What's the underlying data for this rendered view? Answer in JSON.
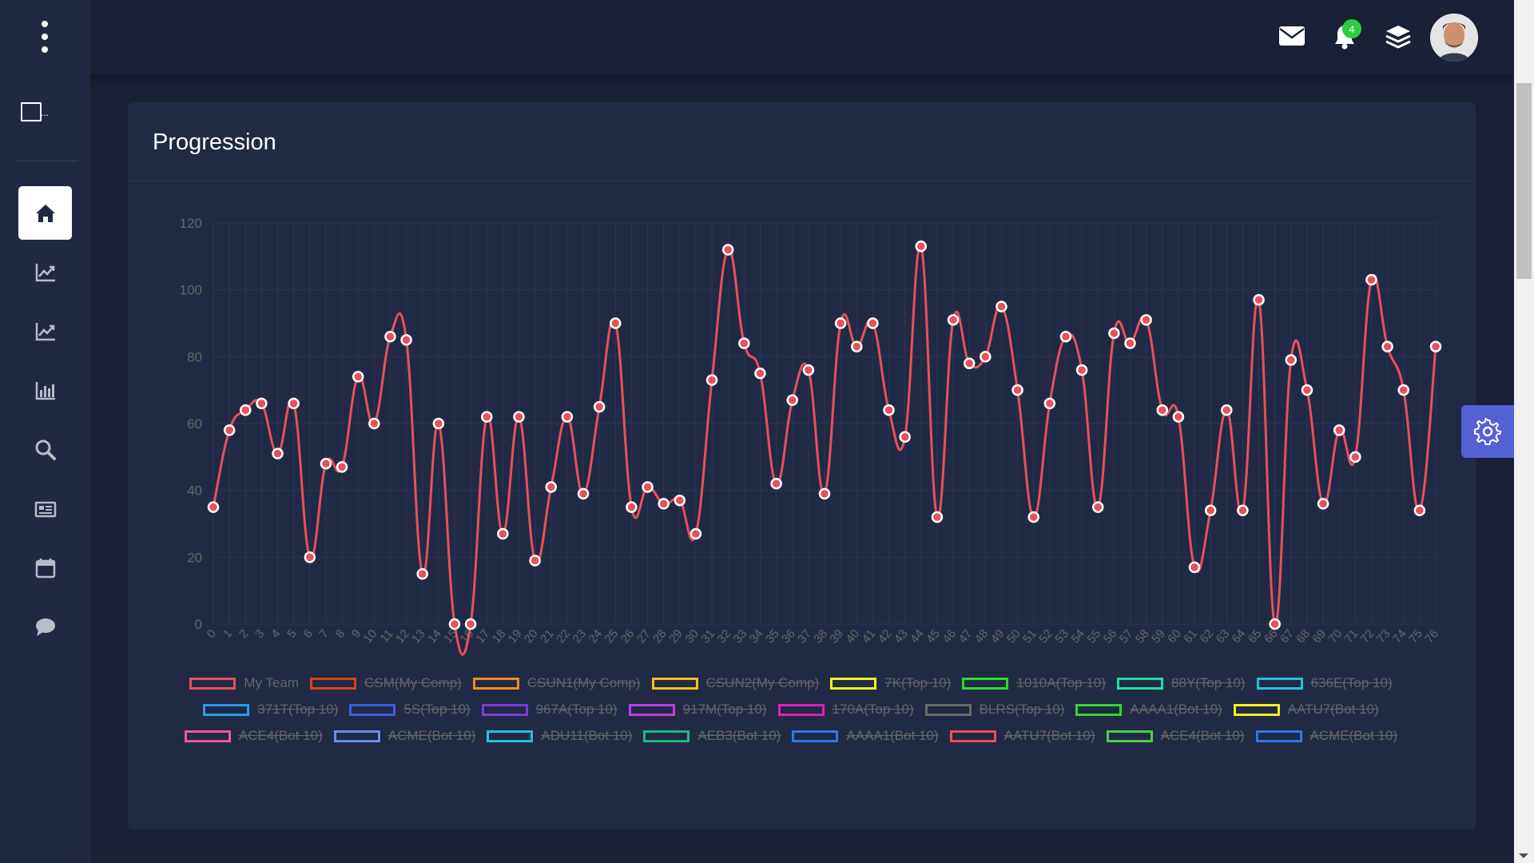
{
  "header": {
    "notification_count": "4"
  },
  "sidebar": {
    "logo_text": "...",
    "items": [
      {
        "icon": "home-icon",
        "active": true
      },
      {
        "icon": "line-chart-icon",
        "active": false
      },
      {
        "icon": "line-chart-icon",
        "active": false
      },
      {
        "icon": "bar-chart-icon",
        "active": false
      },
      {
        "icon": "search-icon",
        "active": false
      },
      {
        "icon": "newspaper-icon",
        "active": false
      },
      {
        "icon": "calendar-icon",
        "active": false
      },
      {
        "icon": "chat-icon",
        "active": false
      }
    ]
  },
  "card": {
    "title": "Progression"
  },
  "chart_data": {
    "type": "line",
    "title": "",
    "xlabel": "",
    "ylabel": "",
    "ylim": [
      0,
      120
    ],
    "yticks": [
      0,
      20,
      40,
      60,
      80,
      100,
      120
    ],
    "grid": true,
    "legend_position": "bottom",
    "x": [
      0,
      1,
      2,
      3,
      4,
      5,
      6,
      7,
      8,
      9,
      10,
      11,
      12,
      13,
      14,
      15,
      16,
      17,
      18,
      19,
      20,
      21,
      22,
      23,
      24,
      25,
      26,
      27,
      28,
      29,
      30,
      31,
      32,
      33,
      34,
      35,
      36,
      37,
      38,
      39,
      40,
      41,
      42,
      43,
      44,
      45,
      46,
      47,
      48,
      49,
      50,
      51,
      52,
      53,
      54,
      55,
      56,
      57,
      58,
      59,
      60,
      61,
      62,
      63,
      64,
      65,
      66,
      67,
      68,
      69,
      70,
      71,
      72,
      73,
      74,
      75,
      76
    ],
    "series": [
      {
        "name": "My Team",
        "color": "#e8505b",
        "hidden": false,
        "values": [
          35,
          58,
          64,
          66,
          51,
          66,
          20,
          48,
          47,
          74,
          60,
          86,
          85,
          15,
          60,
          0,
          0,
          62,
          27,
          62,
          19,
          41,
          62,
          39,
          65,
          90,
          35,
          41,
          36,
          37,
          27,
          73,
          112,
          84,
          75,
          42,
          67,
          76,
          39,
          90,
          83,
          90,
          64,
          56,
          113,
          32,
          91,
          78,
          80,
          95,
          70,
          32,
          66,
          86,
          76,
          35,
          87,
          84,
          91,
          64,
          62,
          17,
          34,
          64,
          34,
          97,
          0,
          79,
          70,
          36,
          58,
          50,
          103,
          83,
          70,
          34,
          83
        ]
      },
      {
        "name": "CSM(My Comp)",
        "color": "#d9431a",
        "hidden": true
      },
      {
        "name": "CSUN1(My Comp)",
        "color": "#f08c1e",
        "hidden": true
      },
      {
        "name": "CSUN2(My Comp)",
        "color": "#f1c21b",
        "hidden": true
      },
      {
        "name": "7K(Top 10)",
        "color": "#f2f21b",
        "hidden": true
      },
      {
        "name": "1010A(Top 10)",
        "color": "#2bdc2b",
        "hidden": true
      },
      {
        "name": "88Y(Top 10)",
        "color": "#1fe0a0",
        "hidden": true
      },
      {
        "name": "636E(Top 10)",
        "color": "#1fc3e0",
        "hidden": true
      },
      {
        "name": "371T(Top 10)",
        "color": "#2b9be8",
        "hidden": true
      },
      {
        "name": "5S(Top 10)",
        "color": "#3a5be8",
        "hidden": true
      },
      {
        "name": "967A(Top 10)",
        "color": "#7a3ae0",
        "hidden": true
      },
      {
        "name": "917M(Top 10)",
        "color": "#c03ae0",
        "hidden": true
      },
      {
        "name": "170A(Top 10)",
        "color": "#e01fbe",
        "hidden": true
      },
      {
        "name": "BLRS(Top 10)",
        "color": "#6a6a6a",
        "hidden": true
      },
      {
        "name": "AAAA1(Bot 10)",
        "color": "#2bdc2b",
        "hidden": true
      },
      {
        "name": "AATU7(Bot 10)",
        "color": "#f2f21b",
        "hidden": true
      },
      {
        "name": "ACE4(Bot 10)",
        "color": "#e85aa0",
        "hidden": true
      },
      {
        "name": "ACME(Bot 10)",
        "color": "#6a8ee8",
        "hidden": true
      },
      {
        "name": "ADU11(Bot 10)",
        "color": "#1fc3e0",
        "hidden": true
      },
      {
        "name": "AEB3(Bot 10)",
        "color": "#1fb87a",
        "hidden": true
      },
      {
        "name": "AAAA1(Bot 10)",
        "color": "#2b7be8",
        "hidden": true
      },
      {
        "name": "AATU7(Bot 10)",
        "color": "#e8505b",
        "hidden": true
      },
      {
        "name": "ACE4(Bot 10)",
        "color": "#4bcf4b",
        "hidden": true
      },
      {
        "name": "ACME(Bot 10)",
        "color": "#2b7be8",
        "hidden": true
      }
    ]
  }
}
